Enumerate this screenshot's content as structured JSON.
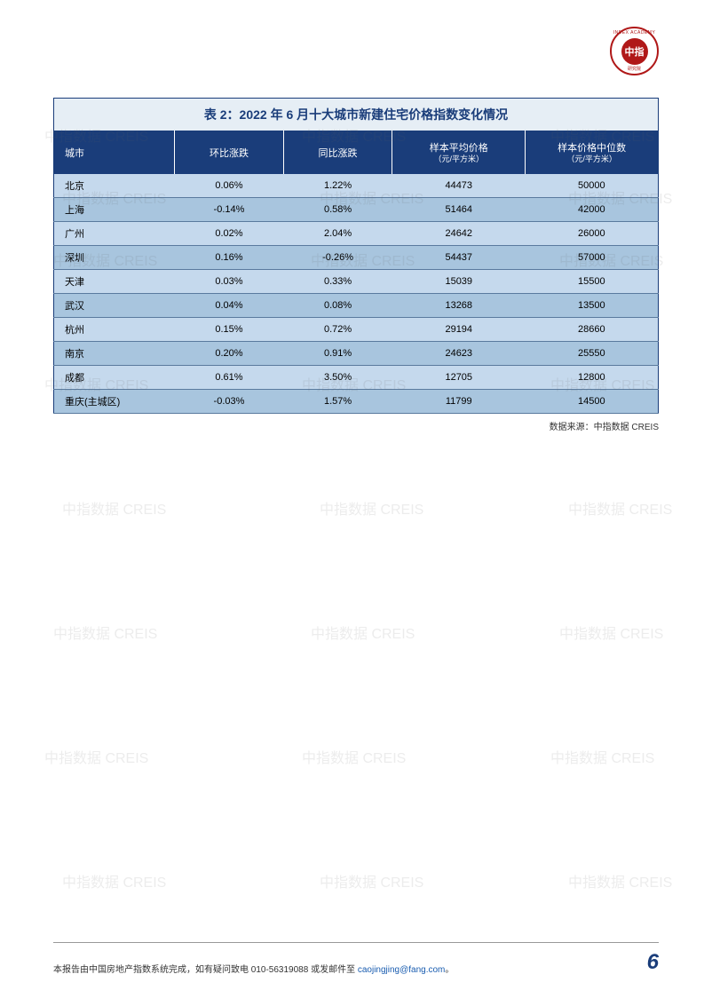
{
  "logo": {
    "text": "中指",
    "ring_top": "INDEX ACADEMY",
    "ring_bottom": "研究院"
  },
  "table": {
    "title": "表 2：2022 年 6 月十大城市新建住宅价格指数变化情况",
    "columns": [
      {
        "label": "城市",
        "sublabel": ""
      },
      {
        "label": "环比涨跌",
        "sublabel": ""
      },
      {
        "label": "同比涨跌",
        "sublabel": ""
      },
      {
        "label": "样本平均价格",
        "sublabel": "（元/平方米）"
      },
      {
        "label": "样本价格中位数",
        "sublabel": "（元/平方米）"
      }
    ],
    "rows": [
      [
        "北京",
        "0.06%",
        "1.22%",
        "44473",
        "50000"
      ],
      [
        "上海",
        "-0.14%",
        "0.58%",
        "51464",
        "42000"
      ],
      [
        "广州",
        "0.02%",
        "2.04%",
        "24642",
        "26000"
      ],
      [
        "深圳",
        "0.16%",
        "-0.26%",
        "54437",
        "57000"
      ],
      [
        "天津",
        "0.03%",
        "0.33%",
        "15039",
        "15500"
      ],
      [
        "武汉",
        "0.04%",
        "0.08%",
        "13268",
        "13500"
      ],
      [
        "杭州",
        "0.15%",
        "0.72%",
        "29194",
        "28660"
      ],
      [
        "南京",
        "0.20%",
        "0.91%",
        "24623",
        "25550"
      ],
      [
        "成都",
        "0.61%",
        "3.50%",
        "12705",
        "12800"
      ],
      [
        "重庆(主城区)",
        "-0.03%",
        "1.57%",
        "11799",
        "14500"
      ]
    ],
    "row_colors": {
      "light": "#c5d9ed",
      "dark": "#a8c5de"
    },
    "header_bg": "#1a3d7a",
    "header_color": "#ffffff",
    "title_bg": "#e6eef5",
    "title_color": "#1a3d7a",
    "column_widths": [
      "20%",
      "18%",
      "18%",
      "22%",
      "22%"
    ]
  },
  "data_source": "数据来源：中指数据  CREIS",
  "watermark": "中指数据  CREIS",
  "footer": {
    "text_prefix": "本报告由中国房地产指数系统完成，如有疑问致电 010-56319088 或发邮件至 ",
    "email": "caojingjing@fang.com",
    "text_suffix": "。",
    "page_number": "6"
  }
}
